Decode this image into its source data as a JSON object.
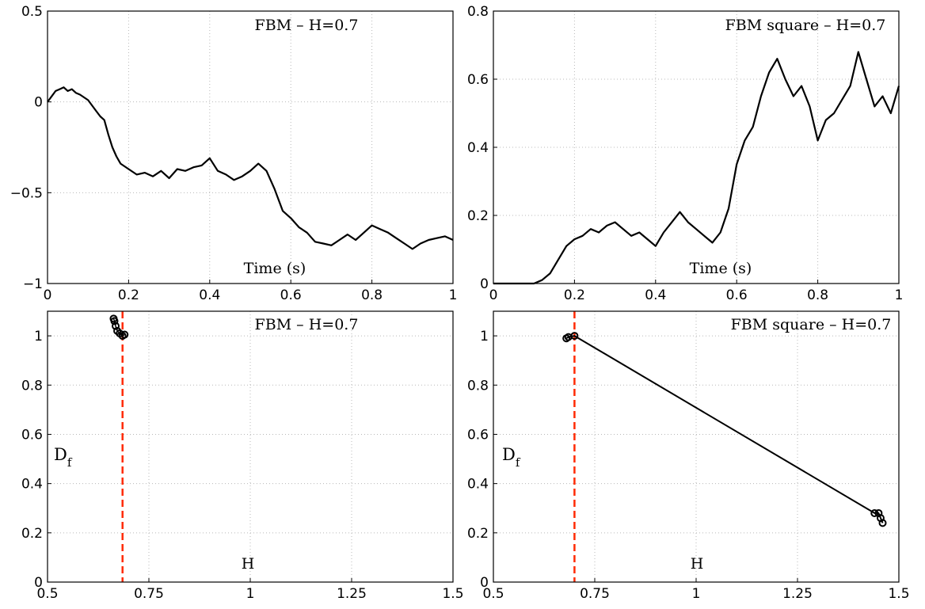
{
  "chart_data": [
    {
      "type": "line",
      "title": "FBM – H=0.7",
      "xlabel": "Time (s)",
      "ylabel": "",
      "xlim": [
        0,
        1
      ],
      "ylim": [
        -1,
        0.5
      ],
      "xticks": [
        "0",
        "0.2",
        "0.4",
        "0.6",
        "0.8",
        "1"
      ],
      "yticks": [
        "−1",
        "−0.5",
        "0",
        "0.5"
      ],
      "grid": true,
      "series": [
        {
          "color": "#000000",
          "x": [
            0,
            0.01,
            0.02,
            0.03,
            0.04,
            0.05,
            0.06,
            0.07,
            0.08,
            0.1,
            0.12,
            0.13,
            0.14,
            0.15,
            0.16,
            0.17,
            0.18,
            0.2,
            0.22,
            0.24,
            0.26,
            0.28,
            0.3,
            0.32,
            0.34,
            0.36,
            0.38,
            0.4,
            0.42,
            0.44,
            0.46,
            0.48,
            0.5,
            0.52,
            0.54,
            0.56,
            0.58,
            0.6,
            0.62,
            0.64,
            0.66,
            0.68,
            0.7,
            0.72,
            0.74,
            0.76,
            0.78,
            0.8,
            0.82,
            0.84,
            0.86,
            0.88,
            0.9,
            0.92,
            0.94,
            0.96,
            0.98,
            1.0
          ],
          "y": [
            0,
            0.03,
            0.06,
            0.07,
            0.08,
            0.06,
            0.07,
            0.05,
            0.04,
            0.01,
            -0.05,
            -0.08,
            -0.1,
            -0.18,
            -0.25,
            -0.3,
            -0.34,
            -0.37,
            -0.4,
            -0.39,
            -0.41,
            -0.38,
            -0.42,
            -0.37,
            -0.38,
            -0.36,
            -0.35,
            -0.31,
            -0.38,
            -0.4,
            -0.43,
            -0.41,
            -0.38,
            -0.34,
            -0.38,
            -0.48,
            -0.6,
            -0.64,
            -0.69,
            -0.72,
            -0.77,
            -0.78,
            -0.79,
            -0.76,
            -0.73,
            -0.76,
            -0.72,
            -0.68,
            -0.7,
            -0.72,
            -0.75,
            -0.78,
            -0.81,
            -0.78,
            -0.76,
            -0.75,
            -0.74,
            -0.76
          ]
        }
      ]
    },
    {
      "type": "line",
      "title": "FBM square – H=0.7",
      "xlabel": "Time (s)",
      "ylabel": "",
      "xlim": [
        0,
        1
      ],
      "ylim": [
        0,
        0.8
      ],
      "xticks": [
        "0",
        "0.2",
        "0.4",
        "0.6",
        "0.8",
        "1"
      ],
      "yticks": [
        "0",
        "0.2",
        "0.4",
        "0.6",
        "0.8"
      ],
      "grid": true,
      "series": [
        {
          "color": "#000000",
          "x": [
            0,
            0.05,
            0.1,
            0.12,
            0.14,
            0.16,
            0.18,
            0.2,
            0.22,
            0.24,
            0.26,
            0.28,
            0.3,
            0.32,
            0.34,
            0.36,
            0.38,
            0.4,
            0.42,
            0.44,
            0.46,
            0.48,
            0.5,
            0.52,
            0.54,
            0.56,
            0.58,
            0.6,
            0.62,
            0.64,
            0.66,
            0.68,
            0.7,
            0.72,
            0.74,
            0.76,
            0.78,
            0.8,
            0.82,
            0.84,
            0.86,
            0.88,
            0.9,
            0.92,
            0.94,
            0.96,
            0.98,
            1.0
          ],
          "y": [
            0,
            0,
            0,
            0.01,
            0.03,
            0.07,
            0.11,
            0.13,
            0.14,
            0.16,
            0.15,
            0.17,
            0.18,
            0.16,
            0.14,
            0.15,
            0.13,
            0.11,
            0.15,
            0.18,
            0.21,
            0.18,
            0.16,
            0.14,
            0.12,
            0.15,
            0.22,
            0.35,
            0.42,
            0.46,
            0.55,
            0.62,
            0.66,
            0.6,
            0.55,
            0.58,
            0.52,
            0.42,
            0.48,
            0.5,
            0.54,
            0.58,
            0.68,
            0.6,
            0.52,
            0.55,
            0.5,
            0.58
          ]
        }
      ]
    },
    {
      "type": "scatter",
      "title": "FBM – H=0.7",
      "xlabel": "H",
      "ylabel": "D_f",
      "xlim": [
        0.5,
        1.5
      ],
      "ylim": [
        0,
        1.1
      ],
      "xticks": [
        "0.5",
        "0.75",
        "1",
        "1.25",
        "1.5"
      ],
      "yticks": [
        "0",
        "0.2",
        "0.4",
        "0.6",
        "0.8",
        "1"
      ],
      "grid": true,
      "reference_line_x": 0.685,
      "reference_color": "#ff2a00",
      "series": [
        {
          "color": "#000000",
          "x": [
            0.663,
            0.665,
            0.668,
            0.672,
            0.678,
            0.685,
            0.69
          ],
          "y": [
            1.07,
            1.06,
            1.04,
            1.02,
            1.01,
            1.0,
            1.005
          ]
        }
      ]
    },
    {
      "type": "line",
      "title": "FBM square – H=0.7",
      "xlabel": "H",
      "ylabel": "D_f",
      "xlim": [
        0.5,
        1.5
      ],
      "ylim": [
        0,
        1.1
      ],
      "xticks": [
        "0.5",
        "0.75",
        "1",
        "1.25",
        "1.5"
      ],
      "yticks": [
        "0",
        "0.2",
        "0.4",
        "0.6",
        "0.8",
        "1"
      ],
      "grid": true,
      "reference_line_x": 0.7,
      "reference_color": "#ff2a00",
      "series": [
        {
          "color": "#000000",
          "x": [
            0.68,
            0.685,
            0.7,
            1.44,
            1.45,
            1.455,
            1.46
          ],
          "y": [
            0.99,
            0.995,
            1.0,
            0.28,
            0.28,
            0.26,
            0.24
          ]
        }
      ]
    }
  ]
}
